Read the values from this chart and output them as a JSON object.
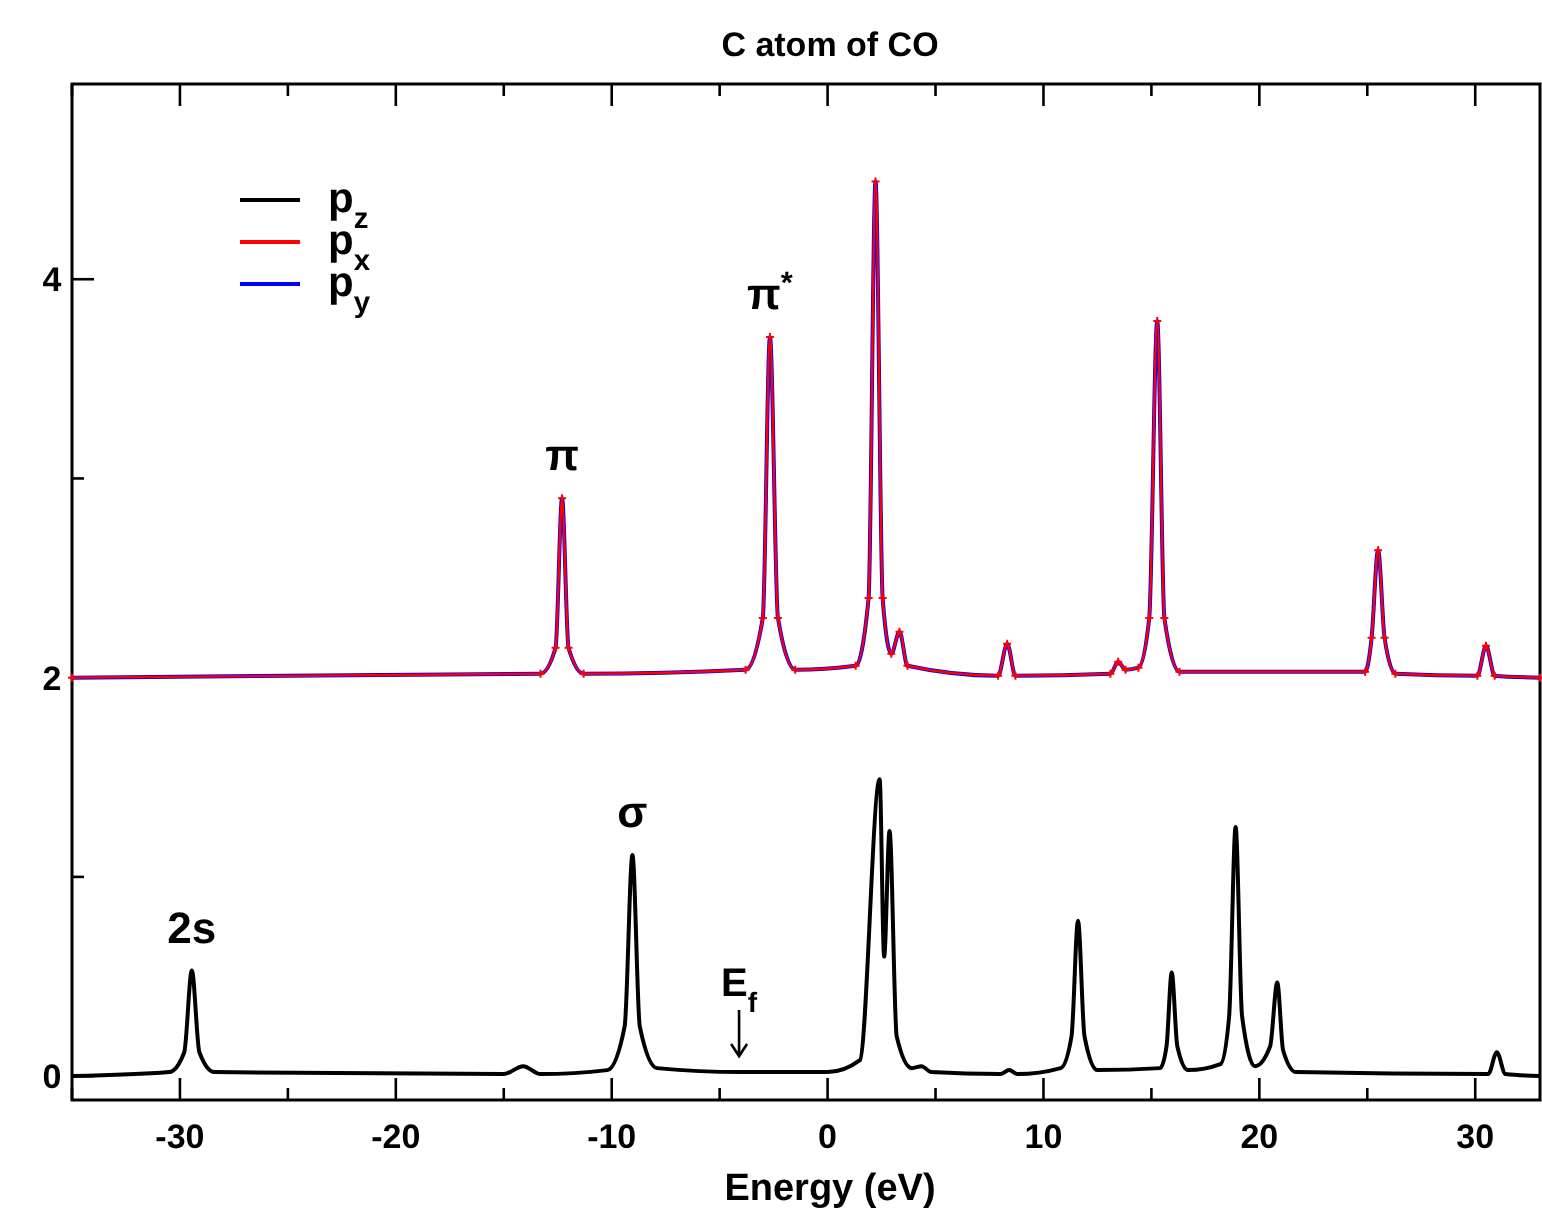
{
  "chart_data": {
    "type": "line",
    "title": "C atom of CO",
    "xlabel": "Energy (eV)",
    "xlim": [
      -35,
      33
    ],
    "ylim": [
      -0.12,
      4.98
    ],
    "xticks": [
      {
        "value": -35,
        "label": null
      },
      -30,
      {
        "value": -25,
        "label": null
      },
      -20,
      {
        "value": -15,
        "label": null
      },
      -10,
      {
        "value": -5,
        "label": null
      },
      0,
      {
        "value": 5,
        "label": null
      },
      10,
      {
        "value": 15,
        "label": null
      },
      20,
      {
        "value": 25,
        "label": null
      },
      30
    ],
    "yticks": [
      0,
      {
        "value": 1,
        "label": null
      },
      2,
      {
        "value": 3,
        "label": null
      },
      4
    ],
    "grid": false,
    "legend": "top left",
    "annotations": [
      {
        "text": "2s",
        "x": -29.45,
        "y": 0.53
      },
      {
        "text": "σ",
        "x": -9.04,
        "y": 1.11
      },
      {
        "text": "π",
        "x": -12.3,
        "y": 2.9
      },
      {
        "text": "π$^{*}$",
        "x": -2.67,
        "y": 3.71
      },
      {
        "text": "E$_{f}$",
        "x": -4.1,
        "y": 0
      }
    ],
    "series": [
      {
        "name": "p$_{z}$",
        "color": "#000000",
        "x": [
          -35,
          -30.5,
          -29.8,
          -29.45,
          -29.1,
          -28.4,
          -15,
          -14.1,
          -13.3,
          -10.2,
          -9.4,
          -9.04,
          -8.7,
          -7.9,
          -4,
          0,
          1.5,
          2.41,
          2.62,
          2.87,
          3.2,
          3.9,
          4.35,
          4.8,
          8,
          8.41,
          8.8,
          10.8,
          11.3,
          11.6,
          11.9,
          12.5,
          15.4,
          15.7,
          15.94,
          16.2,
          16.7,
          18.2,
          18.6,
          18.9,
          19.2,
          19.8,
          20.5,
          20.83,
          21.1,
          21.7,
          30.6,
          31,
          31.4,
          33
        ],
        "values": [
          0,
          0.02,
          0.12,
          0.53,
          0.12,
          0.02,
          0.01,
          0.05,
          0.01,
          0.03,
          0.25,
          1.11,
          0.25,
          0.04,
          0.02,
          0.02,
          0.08,
          1.49,
          0.6,
          1.23,
          0.2,
          0.04,
          0.05,
          0.02,
          0.01,
          0.03,
          0.01,
          0.04,
          0.2,
          0.78,
          0.2,
          0.03,
          0.04,
          0.15,
          0.52,
          0.15,
          0.03,
          0.06,
          0.3,
          1.25,
          0.3,
          0.05,
          0.15,
          0.47,
          0.13,
          0.02,
          0.01,
          0.12,
          0.01,
          0
        ]
      },
      {
        "name": "p$_{x}$",
        "color": "#ff0000",
        "marker": "cross",
        "x": [
          -35,
          -13.3,
          -12.6,
          -12.3,
          -12,
          -11.3,
          -3.8,
          -3,
          -2.67,
          -2.3,
          -1.5,
          1.3,
          1.9,
          2.22,
          2.55,
          2.95,
          3.33,
          3.7,
          7.9,
          8.32,
          8.7,
          13.1,
          13.46,
          13.8,
          14.4,
          14.9,
          15.27,
          15.6,
          16.3,
          24.9,
          25.2,
          25.5,
          25.8,
          26.3,
          30.1,
          30.5,
          30.9,
          33
        ],
        "values": [
          2,
          2.02,
          2.15,
          2.9,
          2.15,
          2.02,
          2.04,
          2.3,
          3.71,
          2.3,
          2.04,
          2.06,
          2.4,
          4.49,
          2.4,
          2.12,
          2.23,
          2.06,
          2.01,
          2.17,
          2.01,
          2.02,
          2.08,
          2.04,
          2.05,
          2.3,
          3.79,
          2.3,
          2.03,
          2.03,
          2.2,
          2.64,
          2.2,
          2.02,
          2.01,
          2.16,
          2.01,
          2
        ]
      },
      {
        "name": "p$_{y}$",
        "color": "#0000ff",
        "x": [
          -35,
          -13.3,
          -12.6,
          -12.3,
          -12,
          -11.3,
          -3.8,
          -3,
          -2.67,
          -2.3,
          -1.5,
          1.3,
          1.9,
          2.22,
          2.55,
          2.95,
          3.33,
          3.7,
          7.9,
          8.32,
          8.7,
          13.1,
          13.46,
          13.8,
          14.4,
          14.9,
          15.27,
          15.6,
          16.3,
          24.9,
          25.2,
          25.5,
          25.8,
          26.3,
          30.1,
          30.5,
          30.9,
          33
        ],
        "values": [
          2,
          2.02,
          2.15,
          2.9,
          2.15,
          2.02,
          2.04,
          2.3,
          3.71,
          2.3,
          2.04,
          2.06,
          2.4,
          4.49,
          2.4,
          2.12,
          2.23,
          2.06,
          2.01,
          2.17,
          2.01,
          2.02,
          2.08,
          2.04,
          2.05,
          2.3,
          3.79,
          2.3,
          2.03,
          2.03,
          2.2,
          2.64,
          2.2,
          2.02,
          2.01,
          2.16,
          2.01,
          2
        ]
      }
    ]
  }
}
